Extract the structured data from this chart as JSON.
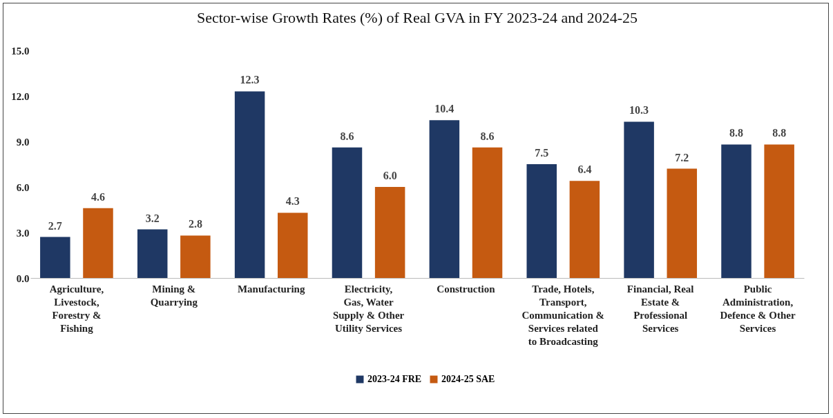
{
  "chart_data": {
    "type": "bar",
    "title": "Sector-wise Growth Rates (%) of Real GVA in FY 2023-24 and 2024-25",
    "categories": [
      "Agriculture, Livestock, Forestry & Fishing",
      "Mining & Quarrying",
      "Manufacturing",
      "Electricity, Gas, Water Supply & Other Utility Services",
      "Construction",
      "Trade, Hotels, Transport, Communication & Services related to Broadcasting",
      "Financial, Real Estate & Professional Services",
      "Public Administration, Defence & Other Services"
    ],
    "series": [
      {
        "name": "2023-24 FRE",
        "color": "#1f3864",
        "values": [
          2.7,
          3.2,
          12.3,
          8.6,
          10.4,
          7.5,
          10.3,
          8.8
        ],
        "value_labels": [
          "2.7",
          "3.2",
          "12.3",
          "8.6",
          "10.4",
          "7.5",
          "10.3",
          "8.8"
        ]
      },
      {
        "name": "2024-25 SAE",
        "color": "#c55a11",
        "values": [
          4.6,
          2.8,
          4.3,
          6.0,
          8.6,
          6.4,
          7.2,
          8.8
        ],
        "value_labels": [
          "4.6",
          "2.8",
          "4.3",
          "6.0",
          "8.6",
          "6.4",
          "7.2",
          "8.8"
        ]
      }
    ],
    "ylim": [
      0,
      15
    ],
    "yticks": [
      {
        "value": 0,
        "label": "0.0"
      },
      {
        "value": 3,
        "label": "3.0"
      },
      {
        "value": 6,
        "label": "6.0"
      },
      {
        "value": 9,
        "label": "9.0"
      },
      {
        "value": 12,
        "label": "12.0"
      },
      {
        "value": 15,
        "label": "15.0"
      }
    ],
    "grid": false,
    "legend": "bottom"
  }
}
